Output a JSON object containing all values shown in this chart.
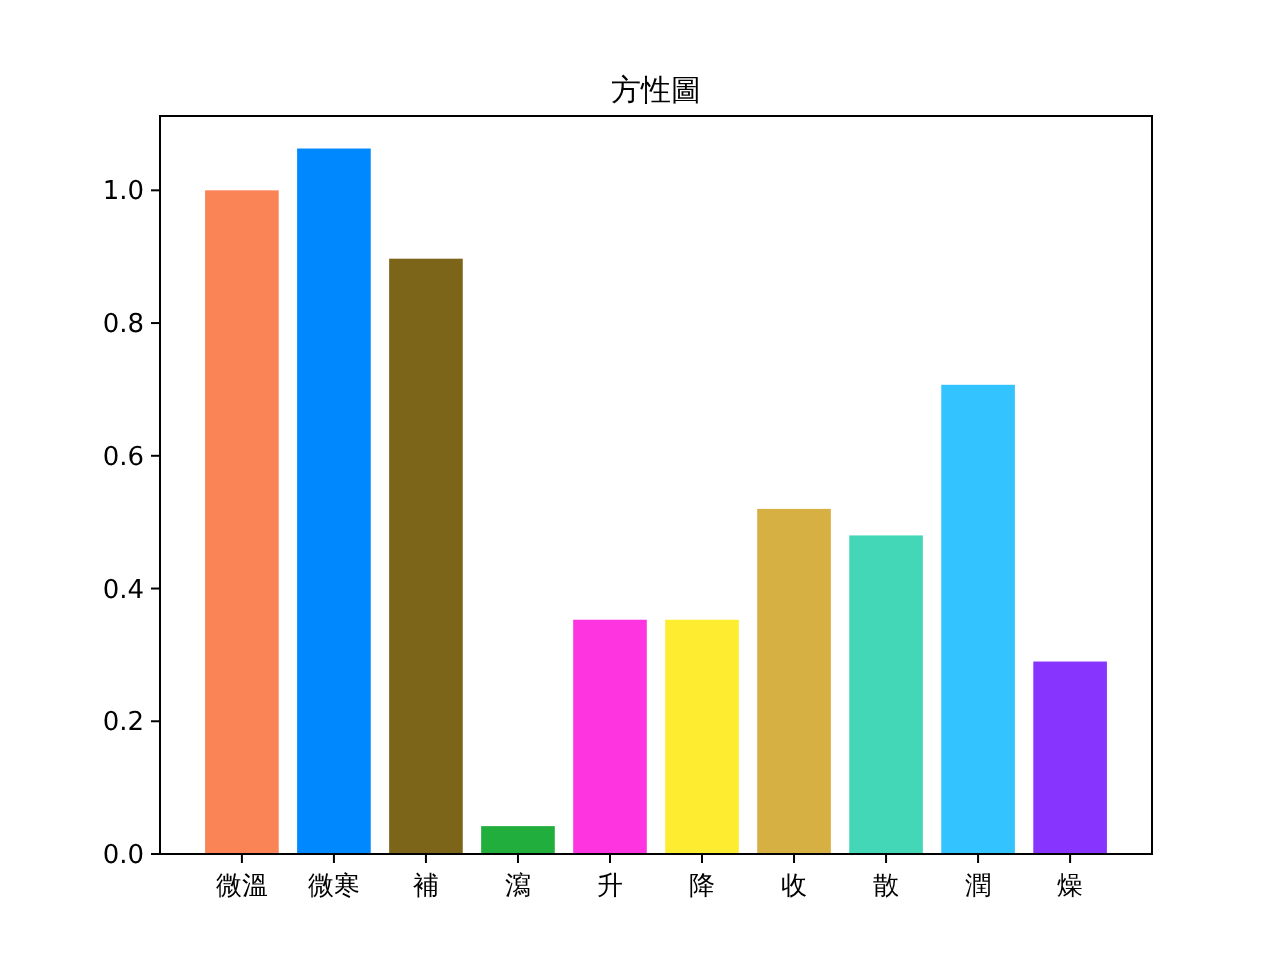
{
  "chart_data": {
    "type": "bar",
    "title": "方性圖",
    "categories": [
      "微溫",
      "微寒",
      "補",
      "瀉",
      "升",
      "降",
      "收",
      "散",
      "潤",
      "燥"
    ],
    "values": [
      1.0,
      1.063,
      0.897,
      0.042,
      0.353,
      0.353,
      0.52,
      0.48,
      0.707,
      0.29
    ],
    "colors": [
      "#fa8455",
      "#0088ff",
      "#7c6418",
      "#21ae3c",
      "#fd34e0",
      "#fdec2f",
      "#d7b044",
      "#43d7b7",
      "#33c4ff",
      "#8734ff"
    ],
    "ylim": [
      0,
      1.112
    ],
    "yticks": [
      {
        "value": 0,
        "label": "0.0"
      },
      0.2,
      0.4,
      0.6,
      0.8,
      {
        "value": 1,
        "label": "1.0"
      }
    ],
    "grid": false
  }
}
